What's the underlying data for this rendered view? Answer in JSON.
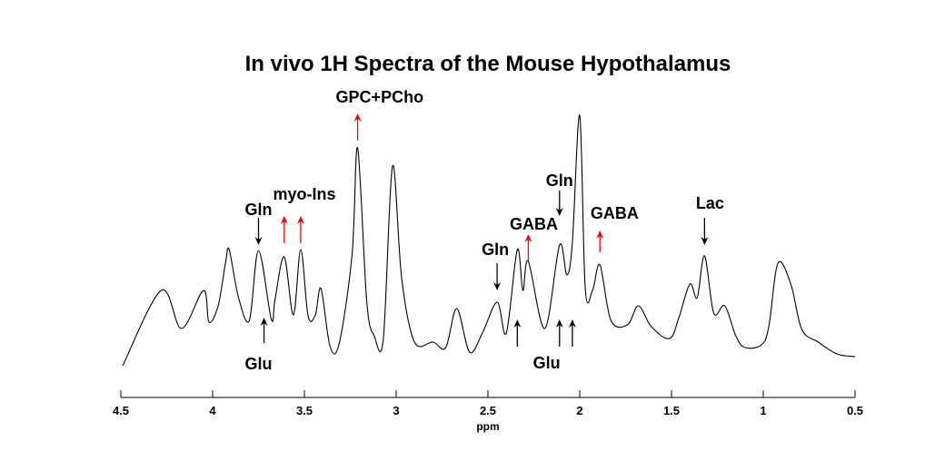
{
  "chart_data": {
    "type": "line",
    "title": "In vivo 1H Spectra of the Mouse Hypothalamus",
    "xlabel": "ppm",
    "ylabel": "",
    "xlim": [
      4.5,
      0.5
    ],
    "x_reversed": true,
    "ylim": [
      0,
      32
    ],
    "y_units": "arbitrary",
    "grid": false,
    "xticks": [
      "4.5",
      "4",
      "3.5",
      "3",
      "2.5",
      "2",
      "1.5",
      "1",
      "0.5"
    ],
    "xtick_values": [
      4.5,
      4,
      3.5,
      3,
      2.5,
      2,
      1.5,
      1,
      0.5
    ],
    "series": [
      {
        "name": "spectrum",
        "color": "#000000",
        "points": [
          [
            4.49,
            3.7
          ],
          [
            4.28,
            12.0
          ],
          [
            4.17,
            7.8
          ],
          [
            4.05,
            12.0
          ],
          [
            4.02,
            8.5
          ],
          [
            3.97,
            10.3
          ],
          [
            3.93,
            15.0
          ],
          [
            3.91,
            16.5
          ],
          [
            3.86,
            11.3
          ],
          [
            3.8,
            8.7
          ],
          [
            3.75,
            16.4
          ],
          [
            3.68,
            8.8
          ],
          [
            3.66,
            11.0
          ],
          [
            3.61,
            15.7
          ],
          [
            3.56,
            9.3
          ],
          [
            3.52,
            16.5
          ],
          [
            3.48,
            9.2
          ],
          [
            3.44,
            9.3
          ],
          [
            3.41,
            12.2
          ],
          [
            3.36,
            5.8
          ],
          [
            3.31,
            6.2
          ],
          [
            3.24,
            16.0
          ],
          [
            3.21,
            27.7
          ],
          [
            3.16,
            10.7
          ],
          [
            3.12,
            7.0
          ],
          [
            3.07,
            6.7
          ],
          [
            3.02,
            25.7
          ],
          [
            2.97,
            13.3
          ],
          [
            2.9,
            6.3
          ],
          [
            2.8,
            6.3
          ],
          [
            2.73,
            5.7
          ],
          [
            2.67,
            10.0
          ],
          [
            2.6,
            5.2
          ],
          [
            2.53,
            7.3
          ],
          [
            2.45,
            10.7
          ],
          [
            2.4,
            7.3
          ],
          [
            2.34,
            16.5
          ],
          [
            2.31,
            12.0
          ],
          [
            2.28,
            15.2
          ],
          [
            2.19,
            7.8
          ],
          [
            2.11,
            17.0
          ],
          [
            2.07,
            13.7
          ],
          [
            2.04,
            17.3
          ],
          [
            2.0,
            31.3
          ],
          [
            1.97,
            12.2
          ],
          [
            1.93,
            12.0
          ],
          [
            1.89,
            14.8
          ],
          [
            1.83,
            8.7
          ],
          [
            1.74,
            8.2
          ],
          [
            1.68,
            10.3
          ],
          [
            1.61,
            8.0
          ],
          [
            1.51,
            6.7
          ],
          [
            1.46,
            9.0
          ],
          [
            1.4,
            12.7
          ],
          [
            1.36,
            11.2
          ],
          [
            1.32,
            15.8
          ],
          [
            1.27,
            9.5
          ],
          [
            1.21,
            10.3
          ],
          [
            1.15,
            7.0
          ],
          [
            1.1,
            5.7
          ],
          [
            1.01,
            6.0
          ],
          [
            0.97,
            8.0
          ],
          [
            0.92,
            15.0
          ],
          [
            0.85,
            12.7
          ],
          [
            0.79,
            7.7
          ],
          [
            0.7,
            6.3
          ],
          [
            0.6,
            5.0
          ],
          [
            0.5,
            4.7
          ]
        ]
      }
    ],
    "annotations": [
      {
        "text": "GPC+PCho",
        "label_ppm": 3.09,
        "label_y": 33.2,
        "color": "#ff0000",
        "arrows": [
          {
            "ppm": 3.21,
            "from": 28.5,
            "to": 31.5
          }
        ]
      },
      {
        "text": "myo-Ins",
        "label_ppm": 3.5,
        "label_y": 22.5,
        "color": "#ff0000",
        "arrows": [
          {
            "ppm": 3.61,
            "from": 17.2,
            "to": 20.2
          },
          {
            "ppm": 3.52,
            "from": 17.2,
            "to": 20.2
          }
        ]
      },
      {
        "text": "Gln",
        "label_ppm": 3.75,
        "label_y": 20.8,
        "color": "#000000",
        "arrows": [
          {
            "ppm": 3.75,
            "from": 20.0,
            "to": 17.0
          }
        ]
      },
      {
        "text": "Glu",
        "label_ppm": 3.75,
        "label_y": 3.8,
        "color": "#000000",
        "arrows": [
          {
            "ppm": 3.72,
            "from": 6.2,
            "to": 9.0
          }
        ]
      },
      {
        "text": "Gln",
        "label_ppm": 2.46,
        "label_y": 16.4,
        "color": "#000000",
        "arrows": [
          {
            "ppm": 2.45,
            "from": 15.0,
            "to": 12.0
          }
        ]
      },
      {
        "text": "GABA",
        "label_ppm": 2.25,
        "label_y": 19.2,
        "color": "#ff0000",
        "arrows": [
          {
            "ppm": 2.28,
            "from": 15.2,
            "to": 18.2
          }
        ]
      },
      {
        "text": "Gln",
        "label_ppm": 2.11,
        "label_y": 24.0,
        "color": "#000000",
        "arrows": [
          {
            "ppm": 2.11,
            "from": 23.0,
            "to": 20.2
          }
        ]
      },
      {
        "text": "GABA",
        "label_ppm": 1.81,
        "label_y": 20.4,
        "color": "#ff0000",
        "arrows": [
          {
            "ppm": 1.89,
            "from": 16.2,
            "to": 18.6
          }
        ]
      },
      {
        "text": "Lac",
        "label_ppm": 1.29,
        "label_y": 21.5,
        "color": "#000000",
        "arrows": [
          {
            "ppm": 1.32,
            "from": 20.0,
            "to": 17.0
          }
        ]
      },
      {
        "text": "Glu",
        "label_ppm": 2.18,
        "label_y": 3.9,
        "color": "#000000",
        "arrows": [
          {
            "ppm": 2.34,
            "from": 5.8,
            "to": 8.8
          },
          {
            "ppm": 2.11,
            "from": 5.8,
            "to": 8.8
          },
          {
            "ppm": 2.04,
            "from": 5.8,
            "to": 8.8
          }
        ]
      }
    ]
  }
}
